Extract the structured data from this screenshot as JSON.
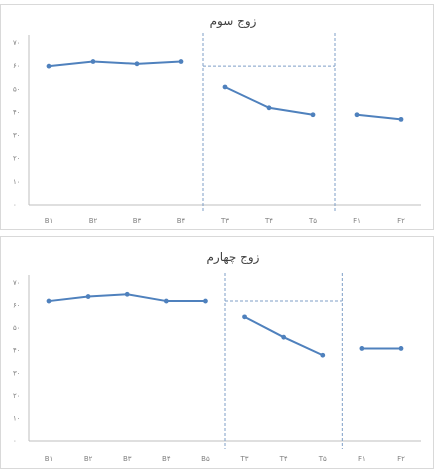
{
  "chart_data": [
    {
      "type": "line",
      "title": "زوج سوم",
      "y_tick_labels": [
        "۰",
        "۱۰",
        "۲۰",
        "۳۰",
        "۴۰",
        "۵۰",
        "۶۰",
        "۷۰"
      ],
      "ylim": [
        0,
        70
      ],
      "grid": false,
      "series": [
        {
          "segment": "base",
          "categories": [
            "B۱",
            "B۲",
            "B۳",
            "B۴"
          ],
          "values": [
            60,
            62,
            61,
            62
          ]
        },
        {
          "segment": "treatment",
          "categories": [
            "T۳",
            "T۴",
            "T۵"
          ],
          "values": [
            51,
            42,
            39
          ]
        },
        {
          "segment": "followup",
          "categories": [
            "F۱",
            "F۲"
          ],
          "values": [
            39,
            37
          ]
        }
      ],
      "reference_level": 60,
      "color": "#4f81bd"
    },
    {
      "type": "line",
      "title": "زوج چهارم",
      "y_tick_labels": [
        "۰",
        "۱۰",
        "۲۰",
        "۳۰",
        "۴۰",
        "۵۰",
        "۶۰",
        "۷۰"
      ],
      "ylim": [
        0,
        70
      ],
      "grid": false,
      "series": [
        {
          "segment": "base",
          "categories": [
            "B۱",
            "B۲",
            "B۳",
            "B۴",
            "B۵"
          ],
          "values": [
            62,
            64,
            65,
            62,
            62
          ]
        },
        {
          "segment": "treatment",
          "categories": [
            "T۳",
            "T۴",
            "T۵"
          ],
          "values": [
            55,
            46,
            38
          ]
        },
        {
          "segment": "followup",
          "categories": [
            "F۱",
            "F۲"
          ],
          "values": [
            41,
            41
          ]
        }
      ],
      "reference_level": 62,
      "color": "#4f81bd"
    }
  ]
}
